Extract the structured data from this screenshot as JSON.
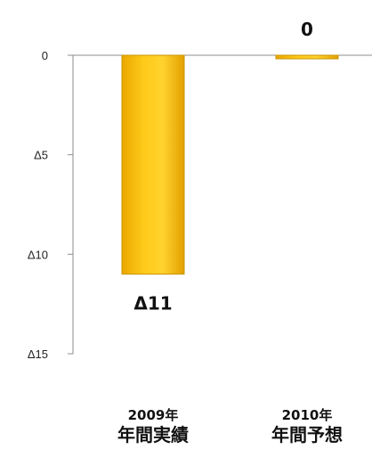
{
  "chart_data": {
    "type": "bar",
    "categories": [
      {
        "line1": "2009年",
        "line2": "年間実績"
      },
      {
        "line1": "2010年",
        "line2": "年間予想"
      }
    ],
    "values": [
      -11,
      0
    ],
    "data_labels": [
      "Δ11",
      "0"
    ],
    "y_ticks": [
      {
        "value": 0,
        "label": "0"
      },
      {
        "value": -5,
        "label": "Δ5"
      },
      {
        "value": -10,
        "label": "Δ10"
      },
      {
        "value": -15,
        "label": "Δ15"
      }
    ],
    "ylim": [
      -15,
      0
    ],
    "grid": false,
    "bar_color": "#F5B800",
    "bar_edge_color": "#C89400"
  }
}
